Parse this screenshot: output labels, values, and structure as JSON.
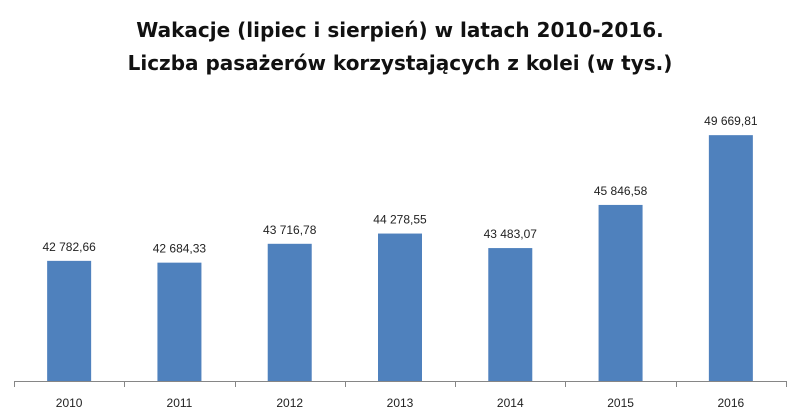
{
  "chart_data": {
    "type": "bar",
    "title": [
      "Wakacje (lipiec i sierpień) w latach 2010-2016.",
      "Liczba pasażerów korzystających z kolei (w tys.)"
    ],
    "categories": [
      "2010",
      "2011",
      "2012",
      "2013",
      "2014",
      "2015",
      "2016"
    ],
    "values": [
      42782.66,
      42684.33,
      43716.78,
      44278.55,
      43483.07,
      45846.58,
      49669.81
    ],
    "data_labels": [
      "42 782,66",
      "42 684,33",
      "43 716,78",
      "44 278,55",
      "43 483,07",
      "45 846,58",
      "49 669,81"
    ],
    "ylim": [
      36200,
      50500
    ],
    "grid": false,
    "legend": "none",
    "bar_color": "#4f81bd",
    "axis_color": "#868686"
  }
}
